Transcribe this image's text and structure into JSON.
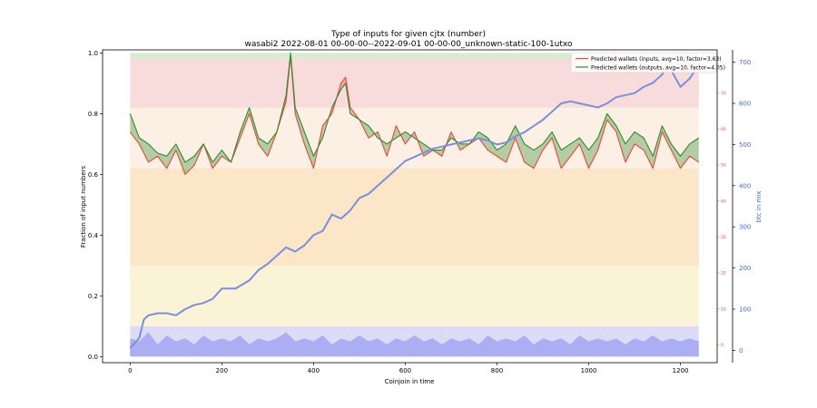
{
  "chart_data": {
    "type": "line",
    "title": "Type of inputs for given cjtx (number)",
    "subtitle": "wasabi2 2022-08-01 00-00-00--2022-09-01 00-00-00_unknown-static-100-1utxo",
    "xlabel": "Coinjoin in time",
    "ylabel": "Fraction of input numbers",
    "y2label": "btc in mix",
    "xlim": [
      -60,
      1280
    ],
    "ylim": [
      -0.02,
      1.01
    ],
    "y2lim": [
      -30,
      730
    ],
    "y3lim": [
      -5,
      82
    ],
    "x_ticks": [
      0,
      200,
      400,
      600,
      800,
      1000,
      1200
    ],
    "y_ticks": [
      0.0,
      0.2,
      0.4,
      0.6,
      0.8,
      1.0
    ],
    "y2_ticks": [
      0,
      100,
      200,
      300,
      400,
      500,
      600,
      700
    ],
    "y3_ticks": [
      0,
      10,
      20,
      30,
      40,
      50,
      60,
      70
    ],
    "legend_position": "top-right",
    "colors": {
      "inputs": "#e8473b",
      "outputs": "#2e8b2e",
      "btc": "#7b8fe0",
      "right_axis": "#4169e1",
      "third_axis": "#e8473b"
    },
    "series": [
      {
        "name": "Predicted wallets (inputs, avg=10, factor=3.63)",
        "x": [
          0,
          20,
          40,
          60,
          80,
          100,
          120,
          140,
          160,
          180,
          200,
          220,
          240,
          260,
          280,
          300,
          320,
          340,
          350,
          360,
          380,
          400,
          420,
          440,
          460,
          470,
          480,
          500,
          520,
          540,
          560,
          580,
          600,
          620,
          640,
          660,
          680,
          700,
          720,
          740,
          760,
          780,
          800,
          820,
          840,
          860,
          880,
          900,
          920,
          940,
          960,
          980,
          1000,
          1020,
          1040,
          1060,
          1080,
          1100,
          1120,
          1140,
          1160,
          1180,
          1200,
          1220,
          1240
        ],
        "values": [
          0.74,
          0.7,
          0.64,
          0.66,
          0.62,
          0.68,
          0.6,
          0.63,
          0.7,
          0.62,
          0.66,
          0.64,
          0.72,
          0.8,
          0.7,
          0.66,
          0.74,
          0.84,
          0.99,
          0.8,
          0.7,
          0.62,
          0.76,
          0.8,
          0.9,
          0.92,
          0.82,
          0.78,
          0.72,
          0.74,
          0.66,
          0.76,
          0.7,
          0.74,
          0.66,
          0.68,
          0.66,
          0.74,
          0.68,
          0.7,
          0.72,
          0.68,
          0.66,
          0.64,
          0.72,
          0.64,
          0.62,
          0.68,
          0.72,
          0.62,
          0.66,
          0.7,
          0.62,
          0.68,
          0.78,
          0.74,
          0.64,
          0.7,
          0.68,
          0.62,
          0.74,
          0.68,
          0.62,
          0.66,
          0.64
        ]
      },
      {
        "name": "Predicted wallets (outputs, avg=10, factor=4.05)",
        "x": [
          0,
          20,
          40,
          60,
          80,
          100,
          120,
          140,
          160,
          180,
          200,
          220,
          240,
          260,
          280,
          300,
          320,
          340,
          350,
          360,
          380,
          400,
          420,
          440,
          460,
          470,
          480,
          500,
          520,
          540,
          560,
          580,
          600,
          620,
          640,
          660,
          680,
          700,
          720,
          740,
          760,
          780,
          800,
          820,
          840,
          860,
          880,
          900,
          920,
          940,
          960,
          980,
          1000,
          1020,
          1040,
          1060,
          1080,
          1100,
          1120,
          1140,
          1160,
          1180,
          1200,
          1220,
          1240
        ],
        "values": [
          0.8,
          0.72,
          0.7,
          0.67,
          0.66,
          0.7,
          0.64,
          0.66,
          0.7,
          0.64,
          0.68,
          0.64,
          0.74,
          0.82,
          0.72,
          0.7,
          0.74,
          0.86,
          1.0,
          0.82,
          0.74,
          0.66,
          0.72,
          0.82,
          0.88,
          0.9,
          0.8,
          0.78,
          0.76,
          0.72,
          0.7,
          0.72,
          0.74,
          0.72,
          0.7,
          0.68,
          0.68,
          0.72,
          0.7,
          0.7,
          0.74,
          0.72,
          0.68,
          0.7,
          0.76,
          0.7,
          0.68,
          0.7,
          0.74,
          0.68,
          0.7,
          0.72,
          0.68,
          0.72,
          0.8,
          0.76,
          0.7,
          0.74,
          0.72,
          0.66,
          0.76,
          0.7,
          0.66,
          0.7,
          0.72
        ]
      },
      {
        "name": "btc in mix",
        "axis": "right",
        "x": [
          0,
          20,
          30,
          40,
          60,
          80,
          100,
          120,
          140,
          160,
          180,
          200,
          230,
          260,
          280,
          300,
          320,
          340,
          360,
          380,
          400,
          420,
          440,
          460,
          480,
          500,
          520,
          540,
          560,
          580,
          600,
          620,
          640,
          660,
          680,
          700,
          720,
          740,
          760,
          780,
          800,
          820,
          840,
          860,
          880,
          900,
          920,
          940,
          960,
          980,
          1000,
          1020,
          1040,
          1060,
          1080,
          1100,
          1120,
          1140,
          1160,
          1170,
          1180,
          1200,
          1220,
          1240
        ],
        "values": [
          5,
          30,
          75,
          85,
          90,
          90,
          85,
          100,
          110,
          115,
          125,
          150,
          150,
          170,
          195,
          210,
          230,
          250,
          240,
          255,
          280,
          290,
          330,
          320,
          340,
          370,
          380,
          400,
          420,
          440,
          460,
          470,
          480,
          490,
          495,
          500,
          505,
          510,
          515,
          510,
          500,
          505,
          520,
          530,
          545,
          560,
          580,
          600,
          605,
          600,
          595,
          590,
          600,
          615,
          620,
          625,
          640,
          650,
          670,
          690,
          680,
          640,
          660,
          695
        ]
      }
    ],
    "volume": {
      "x": [
        0,
        20,
        40,
        60,
        80,
        100,
        120,
        140,
        160,
        180,
        200,
        220,
        240,
        260,
        280,
        300,
        320,
        340,
        360,
        380,
        400,
        420,
        440,
        460,
        480,
        500,
        520,
        540,
        560,
        580,
        600,
        620,
        640,
        660,
        680,
        700,
        720,
        740,
        760,
        780,
        800,
        820,
        840,
        860,
        880,
        900,
        920,
        940,
        960,
        980,
        1000,
        1020,
        1040,
        1060,
        1080,
        1100,
        1120,
        1140,
        1160,
        1180,
        1200,
        1220,
        1240
      ],
      "values": [
        0.06,
        0.05,
        0.08,
        0.04,
        0.07,
        0.05,
        0.06,
        0.04,
        0.07,
        0.05,
        0.06,
        0.05,
        0.07,
        0.04,
        0.06,
        0.05,
        0.06,
        0.08,
        0.05,
        0.06,
        0.05,
        0.07,
        0.04,
        0.06,
        0.05,
        0.07,
        0.05,
        0.06,
        0.04,
        0.06,
        0.05,
        0.07,
        0.05,
        0.06,
        0.04,
        0.06,
        0.05,
        0.06,
        0.04,
        0.07,
        0.05,
        0.06,
        0.05,
        0.07,
        0.04,
        0.06,
        0.05,
        0.06,
        0.04,
        0.07,
        0.05,
        0.06,
        0.05,
        0.06,
        0.04,
        0.06,
        0.05,
        0.07,
        0.05,
        0.06,
        0.05,
        0.06,
        0.05
      ]
    }
  }
}
